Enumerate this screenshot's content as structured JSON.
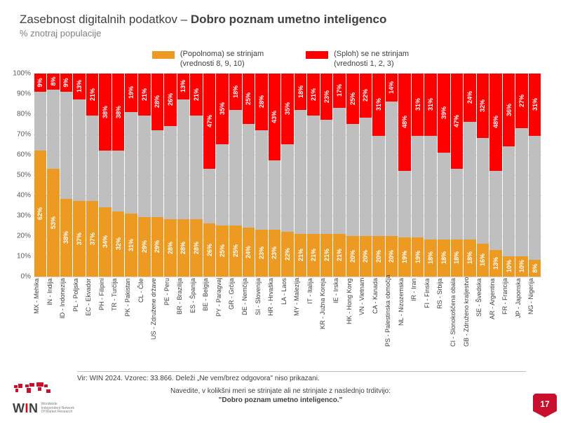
{
  "title_thin": "Zasebnost digitalnih podatkov – ",
  "title_bold": "Dobro poznam umetno inteligenco",
  "subtitle": "% znotraj populacije",
  "legend": {
    "agree": {
      "l1": "(Popolnoma) se strinjam",
      "l2": "(vrednosti 8, 9, 10)",
      "color": "#ed9a22"
    },
    "disagree": {
      "l1": "(Sploh) se ne strinjam",
      "l2": "(vrednosti 1, 2, 3)",
      "color": "#ff0000"
    }
  },
  "chart": {
    "type": "stacked-bar-100",
    "ylim": [
      0,
      100
    ],
    "ytick_step": 10,
    "ytick_suffix": "%",
    "grid_color": "#d9d9d9",
    "neutral_color": "#bfbfbf",
    "bg": "#ffffff",
    "label_fontsize": 9,
    "axis_fontsize": 10,
    "data": [
      {
        "label": "MX - Mehika",
        "agree": 62,
        "disagree": 9
      },
      {
        "label": "IN - Indija",
        "agree": 53,
        "disagree": 8
      },
      {
        "label": "ID - Indonezija",
        "agree": 38,
        "disagree": 9
      },
      {
        "label": "PL - Poljska",
        "agree": 37,
        "disagree": 13
      },
      {
        "label": "EC - Ekvador",
        "agree": 37,
        "disagree": 21
      },
      {
        "label": "PH - Filipini",
        "agree": 34,
        "disagree": 38
      },
      {
        "label": "TR - Turčija",
        "agree": 32,
        "disagree": 38
      },
      {
        "label": "PK - Pakistan",
        "agree": 31,
        "disagree": 19
      },
      {
        "label": "CL - Čile",
        "agree": 29,
        "disagree": 21
      },
      {
        "label": "US - Združene države",
        "agree": 29,
        "disagree": 28
      },
      {
        "label": "PE - Peru",
        "agree": 28,
        "disagree": 26
      },
      {
        "label": "BR - Brazilija",
        "agree": 28,
        "disagree": 13
      },
      {
        "label": "ES - Španija",
        "agree": 28,
        "disagree": 21
      },
      {
        "label": "BE - Belgija",
        "agree": 26,
        "disagree": 47
      },
      {
        "label": "PY - Paragvaj",
        "agree": 25,
        "disagree": 35
      },
      {
        "label": "GR - Grčija",
        "agree": 25,
        "disagree": 18
      },
      {
        "label": "DE - Nemčija",
        "agree": 24,
        "disagree": 25
      },
      {
        "label": "SI - Slovenija",
        "agree": 23,
        "disagree": 28
      },
      {
        "label": "HR - Hrvaška",
        "agree": 23,
        "disagree": 43
      },
      {
        "label": "LA - Laos",
        "agree": 22,
        "disagree": 35
      },
      {
        "label": "MY - Malezija",
        "agree": 21,
        "disagree": 18
      },
      {
        "label": "IT - Italija",
        "agree": 21,
        "disagree": 21
      },
      {
        "label": "KR - Južna Koreja",
        "agree": 21,
        "disagree": 23
      },
      {
        "label": "IE - Irska",
        "agree": 21,
        "disagree": 17
      },
      {
        "label": "HK - Hong Kong",
        "agree": 20,
        "disagree": 25
      },
      {
        "label": "VN - Vietnam",
        "agree": 20,
        "disagree": 22
      },
      {
        "label": "CA - Kanada",
        "agree": 20,
        "disagree": 31
      },
      {
        "label": "PS - Palestinska območja",
        "agree": 20,
        "disagree": 14
      },
      {
        "label": "NL - Nizozemska",
        "agree": 19,
        "disagree": 48
      },
      {
        "label": "IR - Iran",
        "agree": 19,
        "disagree": 31
      },
      {
        "label": "FI - Finska",
        "agree": 18,
        "disagree": 31
      },
      {
        "label": "RS - Srbija",
        "agree": 18,
        "disagree": 39
      },
      {
        "label": "CI - Slonokoščena obala",
        "agree": 18,
        "disagree": 47
      },
      {
        "label": "GB - Združeno kraljestvo",
        "agree": 18,
        "disagree": 24
      },
      {
        "label": "SE - Švedska",
        "agree": 16,
        "disagree": 32
      },
      {
        "label": "AR - Argentina",
        "agree": 13,
        "disagree": 48
      },
      {
        "label": "FR - Francija",
        "agree": 10,
        "disagree": 36
      },
      {
        "label": "JP - Japonska",
        "agree": 10,
        "disagree": 27
      },
      {
        "label": "NG - Nigerija",
        "agree": 8,
        "disagree": 31
      }
    ]
  },
  "source": "Vir: WIN 2024. Vzorec: 33.866. Deleži „Ne vem/brez odgovora\" niso prikazani.",
  "question_l1": "Navedite, v kolikšni meri se strinjate ali ne strinjate z  naslednjo trditvijo:",
  "question_l2": "\"Dobro poznam umetno inteligenco.\"",
  "logo": {
    "text_w": "W",
    "text_i": "I",
    "text_n": "N",
    "sub1": "Worldwide",
    "sub2": "Independent Network",
    "sub3": "Of Market Research"
  },
  "page_number": "17",
  "page_badge_color": "#c8102e"
}
